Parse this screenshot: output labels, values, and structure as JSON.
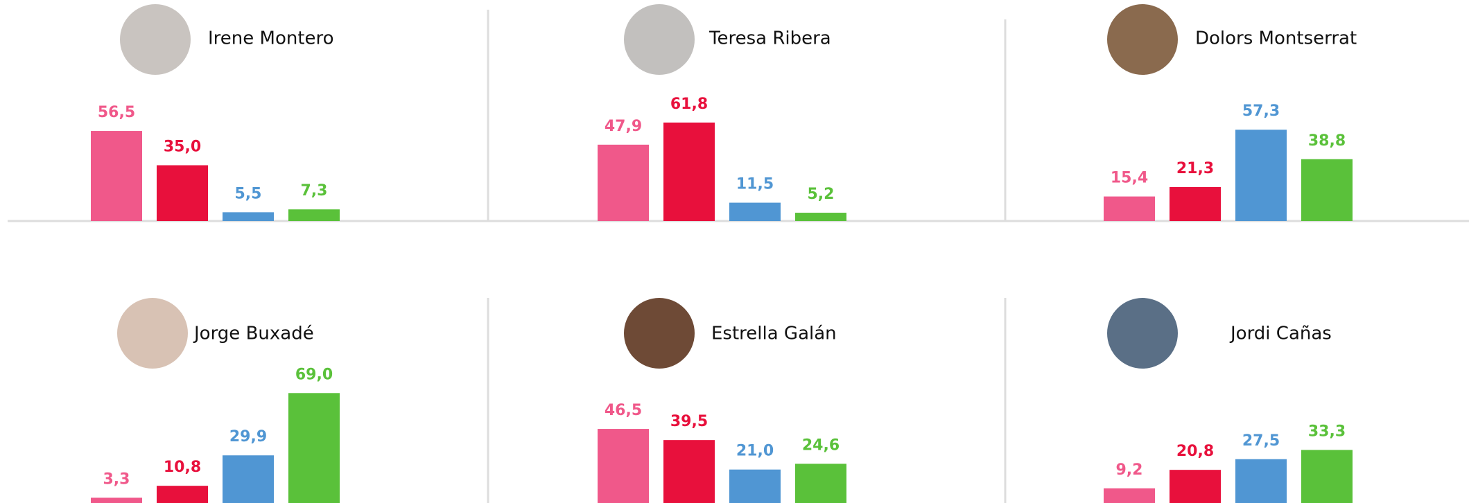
{
  "chart_data": [
    {
      "type": "bar",
      "title": "Irene Montero",
      "categories": [
        null,
        null,
        null,
        null
      ],
      "values": [
        56.5,
        35.0,
        5.5,
        7.3
      ],
      "value_labels": [
        "56,5",
        "35,0",
        "5,5",
        "7,3"
      ],
      "colors": [
        "#f0588a",
        "#e8103c",
        "#5096d3",
        "#5ac13a"
      ],
      "ylim": [
        0,
        100
      ]
    },
    {
      "type": "bar",
      "title": "Teresa Ribera",
      "categories": [
        null,
        null,
        null,
        null
      ],
      "values": [
        47.9,
        61.8,
        11.5,
        5.2
      ],
      "value_labels": [
        "47,9",
        "61,8",
        "11,5",
        "5,2"
      ],
      "colors": [
        "#f0588a",
        "#e8103c",
        "#5096d3",
        "#5ac13a"
      ],
      "ylim": [
        0,
        100
      ]
    },
    {
      "type": "bar",
      "title": "Dolors Montserrat",
      "categories": [
        null,
        null,
        null,
        null
      ],
      "values": [
        15.4,
        21.3,
        57.3,
        38.8
      ],
      "value_labels": [
        "15,4",
        "21,3",
        "57,3",
        "38,8"
      ],
      "colors": [
        "#f0588a",
        "#e8103c",
        "#5096d3",
        "#5ac13a"
      ],
      "ylim": [
        0,
        100
      ]
    },
    {
      "type": "bar",
      "title": "Jorge Buxadé",
      "categories": [
        null,
        null,
        null,
        null
      ],
      "values": [
        3.3,
        10.8,
        29.9,
        69.0
      ],
      "value_labels": [
        "3,3",
        "10,8",
        "29,9",
        "69,0"
      ],
      "colors": [
        "#f0588a",
        "#e8103c",
        "#5096d3",
        "#5ac13a"
      ],
      "ylim": [
        0,
        100
      ]
    },
    {
      "type": "bar",
      "title": "Estrella Galán",
      "categories": [
        null,
        null,
        null,
        null
      ],
      "values": [
        46.5,
        39.5,
        21.0,
        24.6
      ],
      "value_labels": [
        "46,5",
        "39,5",
        "21,0",
        "24,6"
      ],
      "colors": [
        "#f0588a",
        "#e8103c",
        "#5096d3",
        "#5ac13a"
      ],
      "ylim": [
        0,
        100
      ]
    },
    {
      "type": "bar",
      "title": "Jordi Cañas",
      "categories": [
        null,
        null,
        null,
        null
      ],
      "values": [
        9.2,
        20.8,
        27.5,
        33.3
      ],
      "value_labels": [
        "9,2",
        "20,8",
        "27,5",
        "33,3"
      ],
      "colors": [
        "#f0588a",
        "#e8103c",
        "#5096d3",
        "#5ac13a"
      ],
      "ylim": [
        0,
        100
      ]
    }
  ]
}
